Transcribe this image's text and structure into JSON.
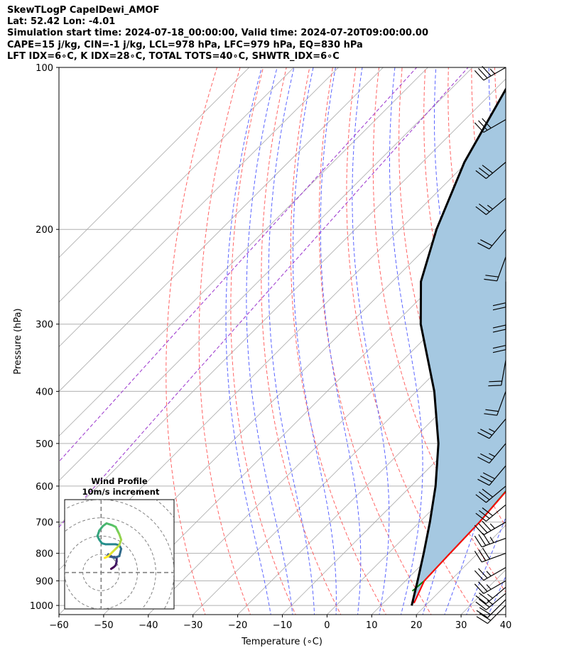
{
  "header": {
    "title": "SkewTLogP CapelDewi_AMOF",
    "location": "Lat: 52.42   Lon: -4.01",
    "times": "Simulation start time: 2024-07-18_00:00:00, Valid time: 2024-07-20T09:00:00.00",
    "params": "CAPE=15 j/kg, CIN=-1 j/kg, LCL=978 hPa, LFC=979 hPa, EQ=830 hPa",
    "indices": "LFT IDX=6∘C, K IDX=28∘C, TOTAL TOTS=40∘C, SHWTR_IDX=6∘C"
  },
  "chart_data": [
    {
      "type": "line",
      "subtype": "skew-t log-p",
      "xlabel": "Temperature (∘C)",
      "ylabel": "Pressure (hPa)",
      "xlim": [
        -60,
        40
      ],
      "ylim": [
        1040,
        100
      ],
      "y_scale": "log",
      "grid": true,
      "x_ticks": [
        -60,
        -50,
        -40,
        -30,
        -20,
        -10,
        0,
        10,
        20,
        30,
        40
      ],
      "y_ticks": [
        100,
        200,
        300,
        400,
        500,
        600,
        700,
        800,
        900,
        1000
      ],
      "series": [
        {
          "role": "temperature",
          "color": "#ff0000",
          "p": [
            990,
            900,
            800,
            700,
            600,
            560,
            530,
            480,
            440,
            400,
            360,
            320,
            290,
            260,
            245,
            235,
            218,
            200,
            180,
            160,
            140,
            120,
            110,
            100
          ],
          "t": [
            16.9,
            14.2,
            13.8,
            13.4,
            12.3,
            10.8,
            9.5,
            7.6,
            5.6,
            2.8,
            0.0,
            -2.3,
            -3.3,
            -6.0,
            -7.6,
            -8.6,
            -1.0,
            -0.8,
            1.3,
            4.3,
            7.0,
            10.3,
            11.3,
            11.0
          ]
        },
        {
          "role": "dewpoint",
          "color": "#008000",
          "p": [
            940,
            900,
            800,
            700,
            600,
            520,
            460,
            420,
            400,
            360,
            330,
            300,
            270,
            250,
            235,
            220,
            200,
            185,
            175,
            165,
            155,
            140,
            125,
            110,
            100
          ],
          "t": [
            13.8,
            14.2,
            13.8,
            13.4,
            12.2,
            8.2,
            3.6,
            1.5,
            0.9,
            -0.7,
            -3.1,
            -6.2,
            -9.0,
            -10.5,
            -11.0,
            -14.0,
            -17.0,
            -19.5,
            -23.0,
            -25.2,
            -25.5,
            -23.5,
            -21.0,
            -19.0,
            -17.0
          ]
        },
        {
          "role": "parcel profile",
          "color": "#000000",
          "p": [
            1000,
            900,
            800,
            700,
            600,
            500,
            400,
            300,
            250,
            200,
            150,
            100
          ],
          "t": [
            16.9,
            12.7,
            7.9,
            2.3,
            -4.5,
            -13.4,
            -26.0,
            -44.1,
            -53.6,
            -61.8,
            -70.6,
            -79.8
          ]
        },
        {
          "role": "surface",
          "color": "#000000",
          "p": [
            1000,
            980
          ],
          "t": [
            16.9,
            16.2
          ]
        }
      ],
      "shading": {
        "role": "CAPE area",
        "color": "#a5c8e1"
      },
      "reference_lines": {
        "isotherms": {
          "color": "#a9a9a9",
          "values": [
            -140,
            -130,
            -120,
            -110,
            -100,
            -90,
            -80,
            -70,
            -60,
            -50,
            -40,
            -30,
            -20,
            -10,
            0,
            10,
            20,
            30,
            40
          ]
        },
        "dry_adiabats": {
          "color": "#ff6464",
          "values_c": [
            -30,
            -20,
            -10,
            0,
            10,
            20,
            30,
            40,
            50,
            60,
            70,
            80,
            90,
            100
          ]
        },
        "moist_adiabats": {
          "color": "#5a64ff",
          "values_c": [
            -15,
            -10,
            -5,
            0,
            5,
            10,
            15,
            20,
            25,
            30,
            35
          ]
        },
        "mixing_ratio": {
          "color": "#9932cc",
          "values_g_kg": [
            0.0001,
            0.001
          ]
        }
      },
      "wind_barbs": {
        "color": "#000000",
        "p": [
          1000,
          975,
          950,
          925,
          900,
          850,
          800,
          750,
          700,
          650,
          600,
          550,
          500,
          450,
          400,
          350,
          300,
          275,
          250,
          225,
          200,
          175,
          150,
          125,
          100
        ],
        "speed_kt": [
          20,
          20,
          25,
          25,
          25,
          25,
          30,
          35,
          35,
          30,
          30,
          30,
          25,
          25,
          20,
          20,
          20,
          20,
          20,
          20,
          20,
          25,
          30,
          30,
          35
        ],
        "dir_deg": [
          225,
          225,
          230,
          230,
          240,
          240,
          250,
          250,
          240,
          230,
          230,
          220,
          220,
          220,
          200,
          190,
          180,
          180,
          180,
          200,
          220,
          230,
          230,
          240,
          240
        ]
      }
    },
    {
      "type": "line",
      "subtype": "hodograph",
      "title": "Wind Profile",
      "subtitle": "10m/s increment",
      "range_m_s": [
        -20,
        40
      ],
      "ring_increment_m_s": 10,
      "colormap": [
        "#440154",
        "#3b528b",
        "#21918c",
        "#5ec962",
        "#fde725"
      ],
      "u": [
        5.5,
        7.0,
        8.0,
        8.5,
        8.5,
        7.5,
        6.0,
        3.5,
        4.0,
        7.0,
        10.0,
        11.0,
        10.0,
        8.0,
        2.5,
        0.5,
        -1.0,
        -2.0,
        -1.0,
        1.0,
        3.0,
        6.0,
        8.0,
        9.0,
        10.0,
        11.0,
        10.0,
        8.0,
        6.0,
        4.0,
        2.0
      ],
      "v": [
        2.0,
        3.0,
        4.0,
        6.0,
        8.0,
        8.5,
        8.5,
        9.0,
        10.0,
        8.0,
        9.0,
        13.0,
        15.0,
        15.5,
        15.5,
        16.0,
        18.0,
        20.0,
        23.0,
        25.5,
        27.0,
        26.0,
        25.0,
        23.0,
        21.0,
        18.0,
        15.0,
        13.0,
        11.0,
        9.0,
        8.0
      ]
    }
  ]
}
